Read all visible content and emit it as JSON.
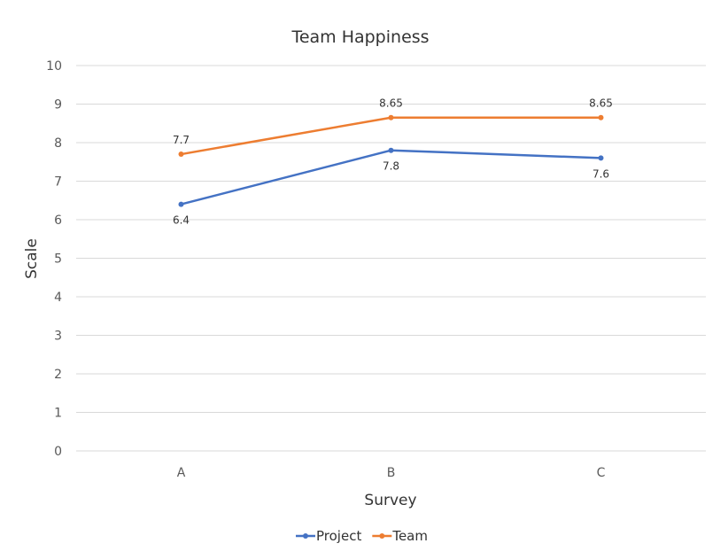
{
  "chart_data": {
    "type": "line",
    "title": "Team Happiness",
    "xlabel": "Survey",
    "ylabel": "Scale",
    "categories": [
      "A",
      "B",
      "C"
    ],
    "ylim": [
      0,
      10
    ],
    "yticks": [
      "0",
      "1",
      "2",
      "3",
      "4",
      "5",
      "6",
      "7",
      "8",
      "9",
      "10"
    ],
    "grid": true,
    "legend_position": "bottom",
    "series": [
      {
        "name": "Project",
        "color": "#4472C4",
        "values": [
          6.4,
          7.8,
          7.6
        ],
        "labels": [
          "6.4",
          "7.8",
          "7.6"
        ],
        "label_position": "below"
      },
      {
        "name": "Team",
        "color": "#ED7D31",
        "values": [
          7.7,
          8.65,
          8.65
        ],
        "labels": [
          "7.7",
          "8.65",
          "8.65"
        ],
        "label_position": "above"
      }
    ]
  }
}
